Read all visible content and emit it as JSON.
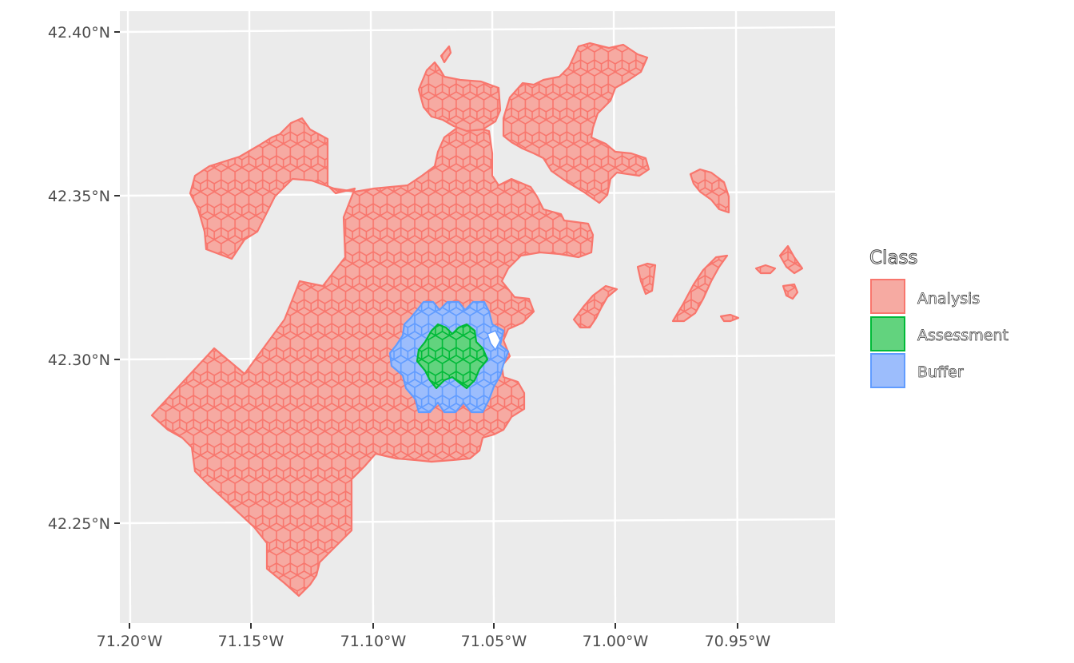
{
  "map": {
    "type": "hexgrid-choropleth",
    "background": "#ebebeb",
    "gridline_color": "#ffffff",
    "x_axis": {
      "ticks": [
        "71.20°W",
        "71.15°W",
        "71.10°W",
        "71.05°W",
        "71.00°W",
        "70.95°W"
      ],
      "tick_values": [
        -71.2,
        -71.15,
        -71.1,
        -71.05,
        -71.0,
        -70.95
      ],
      "range": [
        -71.205,
        -70.914
      ]
    },
    "y_axis": {
      "ticks": [
        "42.40°N",
        "42.35°N",
        "42.30°N",
        "42.25°N"
      ],
      "tick_values": [
        42.4,
        42.35,
        42.3,
        42.25
      ],
      "range": [
        42.219,
        42.408
      ]
    }
  },
  "legend": {
    "title": "Class",
    "position": "right",
    "items": [
      {
        "key": "analysis",
        "label": "Analysis",
        "fill": "#f6aaa2",
        "stroke": "#f8766d"
      },
      {
        "key": "assessment",
        "label": "Assessment",
        "fill": "#62d37e",
        "stroke": "#00ba38"
      },
      {
        "key": "buffer",
        "label": "Buffer",
        "fill": "#9cbdfc",
        "stroke": "#619cff"
      }
    ]
  }
}
